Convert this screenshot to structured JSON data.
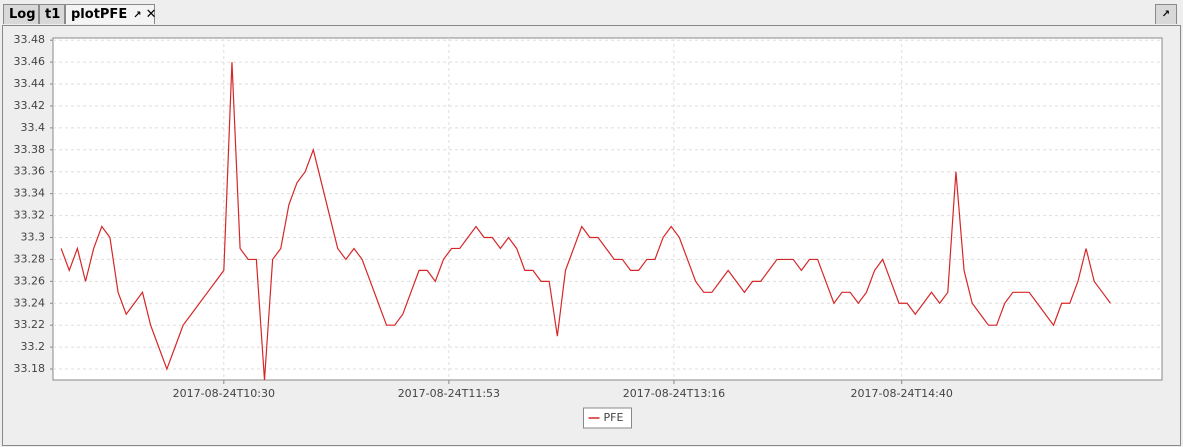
{
  "tabs": [
    "Log",
    "t1",
    "plotPFE"
  ],
  "chart_data": {
    "type": "line",
    "x": [
      "2017-08-24T09:30",
      "2017-08-24T09:33",
      "2017-08-24T09:36",
      "2017-08-24T09:39",
      "2017-08-24T09:42",
      "2017-08-24T09:45",
      "2017-08-24T09:48",
      "2017-08-24T09:51",
      "2017-08-24T09:54",
      "2017-08-24T09:57",
      "2017-08-24T10:00",
      "2017-08-24T10:03",
      "2017-08-24T10:06",
      "2017-08-24T10:09",
      "2017-08-24T10:12",
      "2017-08-24T10:15",
      "2017-08-24T10:18",
      "2017-08-24T10:21",
      "2017-08-24T10:24",
      "2017-08-24T10:27",
      "2017-08-24T10:30",
      "2017-08-24T10:33",
      "2017-08-24T10:36",
      "2017-08-24T10:39",
      "2017-08-24T10:42",
      "2017-08-24T10:45",
      "2017-08-24T10:48",
      "2017-08-24T10:51",
      "2017-08-24T10:54",
      "2017-08-24T10:57",
      "2017-08-24T11:00",
      "2017-08-24T11:03",
      "2017-08-24T11:06",
      "2017-08-24T11:09",
      "2017-08-24T11:12",
      "2017-08-24T11:15",
      "2017-08-24T11:18",
      "2017-08-24T11:21",
      "2017-08-24T11:24",
      "2017-08-24T11:27",
      "2017-08-24T11:30",
      "2017-08-24T11:33",
      "2017-08-24T11:36",
      "2017-08-24T11:39",
      "2017-08-24T11:42",
      "2017-08-24T11:45",
      "2017-08-24T11:48",
      "2017-08-24T11:51",
      "2017-08-24T11:54",
      "2017-08-24T11:57",
      "2017-08-24T12:00",
      "2017-08-24T12:03",
      "2017-08-24T12:06",
      "2017-08-24T12:09",
      "2017-08-24T12:12",
      "2017-08-24T12:15",
      "2017-08-24T12:18",
      "2017-08-24T12:21",
      "2017-08-24T12:24",
      "2017-08-24T12:27",
      "2017-08-24T12:30",
      "2017-08-24T12:33",
      "2017-08-24T12:36",
      "2017-08-24T12:39",
      "2017-08-24T12:42",
      "2017-08-24T12:45",
      "2017-08-24T12:48",
      "2017-08-24T12:51",
      "2017-08-24T12:54",
      "2017-08-24T12:57",
      "2017-08-24T13:00",
      "2017-08-24T13:03",
      "2017-08-24T13:06",
      "2017-08-24T13:09",
      "2017-08-24T13:12",
      "2017-08-24T13:15",
      "2017-08-24T13:18",
      "2017-08-24T13:21",
      "2017-08-24T13:24",
      "2017-08-24T13:27",
      "2017-08-24T13:30",
      "2017-08-24T13:33",
      "2017-08-24T13:36",
      "2017-08-24T13:39",
      "2017-08-24T13:42",
      "2017-08-24T13:45",
      "2017-08-24T13:48",
      "2017-08-24T13:51",
      "2017-08-24T13:54",
      "2017-08-24T13:57",
      "2017-08-24T14:00",
      "2017-08-24T14:03",
      "2017-08-24T14:06",
      "2017-08-24T14:09",
      "2017-08-24T14:12",
      "2017-08-24T14:15",
      "2017-08-24T14:18",
      "2017-08-24T14:21",
      "2017-08-24T14:24",
      "2017-08-24T14:27",
      "2017-08-24T14:30",
      "2017-08-24T14:33",
      "2017-08-24T14:36",
      "2017-08-24T14:39",
      "2017-08-24T14:42",
      "2017-08-24T14:45",
      "2017-08-24T14:48",
      "2017-08-24T14:51",
      "2017-08-24T14:54",
      "2017-08-24T14:57",
      "2017-08-24T15:00",
      "2017-08-24T15:03",
      "2017-08-24T15:06",
      "2017-08-24T15:09",
      "2017-08-24T15:12",
      "2017-08-24T15:15",
      "2017-08-24T15:18",
      "2017-08-24T15:21",
      "2017-08-24T15:24",
      "2017-08-24T15:27",
      "2017-08-24T15:30",
      "2017-08-24T15:33",
      "2017-08-24T15:36",
      "2017-08-24T15:39",
      "2017-08-24T15:42",
      "2017-08-24T15:45",
      "2017-08-24T15:48",
      "2017-08-24T15:51",
      "2017-08-24T15:54",
      "2017-08-24T15:57"
    ],
    "series": [
      {
        "name": "PFE",
        "color": "#d62728",
        "values": [
          33.29,
          33.27,
          33.29,
          33.26,
          33.29,
          33.31,
          33.3,
          33.25,
          33.23,
          33.24,
          33.25,
          33.22,
          33.2,
          33.18,
          33.2,
          33.22,
          33.23,
          33.24,
          33.25,
          33.26,
          33.27,
          33.46,
          33.29,
          33.28,
          33.28,
          33.17,
          33.28,
          33.29,
          33.33,
          33.35,
          33.36,
          33.38,
          33.35,
          33.32,
          33.29,
          33.28,
          33.29,
          33.28,
          33.26,
          33.24,
          33.22,
          33.22,
          33.23,
          33.25,
          33.27,
          33.27,
          33.26,
          33.28,
          33.29,
          33.29,
          33.3,
          33.31,
          33.3,
          33.3,
          33.29,
          33.3,
          33.29,
          33.27,
          33.27,
          33.26,
          33.26,
          33.21,
          33.27,
          33.29,
          33.31,
          33.3,
          33.3,
          33.29,
          33.28,
          33.28,
          33.27,
          33.27,
          33.28,
          33.28,
          33.3,
          33.31,
          33.3,
          33.28,
          33.26,
          33.25,
          33.25,
          33.26,
          33.27,
          33.26,
          33.25,
          33.26,
          33.26,
          33.27,
          33.28,
          33.28,
          33.28,
          33.27,
          33.28,
          33.28,
          33.26,
          33.24,
          33.25,
          33.25,
          33.24,
          33.25,
          33.27,
          33.28,
          33.26,
          33.24,
          33.24,
          33.23,
          33.24,
          33.25,
          33.24,
          33.25,
          33.36,
          33.27,
          33.24,
          33.23,
          33.22,
          33.22,
          33.24,
          33.25,
          33.25,
          33.25,
          33.24,
          33.23,
          33.22,
          33.24,
          33.24,
          33.26,
          33.29,
          33.26,
          33.25,
          33.24
        ]
      }
    ],
    "xlim": [
      "2017-08-24T09:27",
      "2017-08-24T16:16"
    ],
    "xticks": [
      "2017-08-24T10:30",
      "2017-08-24T11:53",
      "2017-08-24T13:16",
      "2017-08-24T14:40"
    ],
    "ylim": [
      33.17,
      33.482
    ],
    "yticks": [
      33.18,
      33.2,
      33.22,
      33.24,
      33.26,
      33.28,
      33.3,
      33.32,
      33.34,
      33.36,
      33.38,
      33.4,
      33.42,
      33.44,
      33.46,
      33.48
    ],
    "grid": true
  }
}
